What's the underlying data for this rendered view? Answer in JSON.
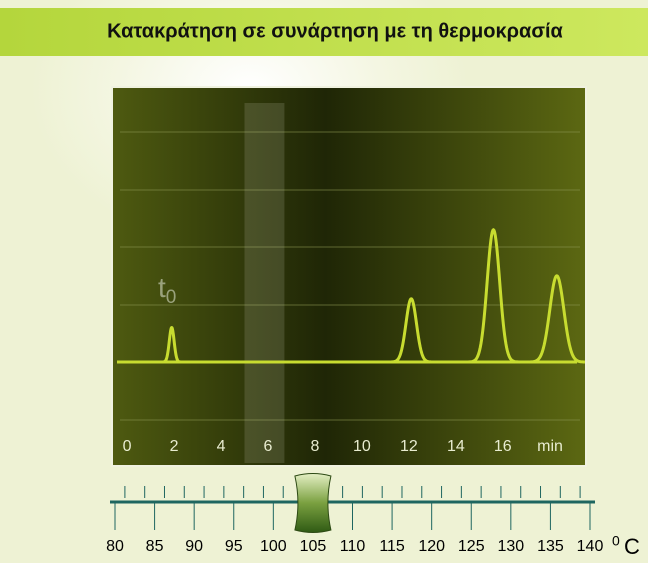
{
  "title": "Κατακράτηση σε συνάρτηση με τη θερμοκρασία",
  "chromatogram": {
    "xlim": [
      -0.6,
      19.5
    ],
    "xticks": [
      0,
      2,
      4,
      6,
      8,
      10,
      12,
      14,
      16
    ],
    "x_unit": "min",
    "t0_label": "t",
    "t0_subscript": "0",
    "band": [
      5,
      6.7
    ],
    "peaks": [
      {
        "time": 1.9,
        "height": 0.6
      },
      {
        "time": 12.1,
        "height": 1.1
      },
      {
        "time": 15.6,
        "height": 2.3
      },
      {
        "time": 18.3,
        "height": 1.5
      }
    ]
  },
  "temperature_slider": {
    "ticks": [
      80,
      85,
      90,
      95,
      100,
      105,
      110,
      115,
      120,
      125,
      130,
      135,
      140
    ],
    "unit_superscript": "0",
    "unit": "C",
    "value": 105
  }
}
